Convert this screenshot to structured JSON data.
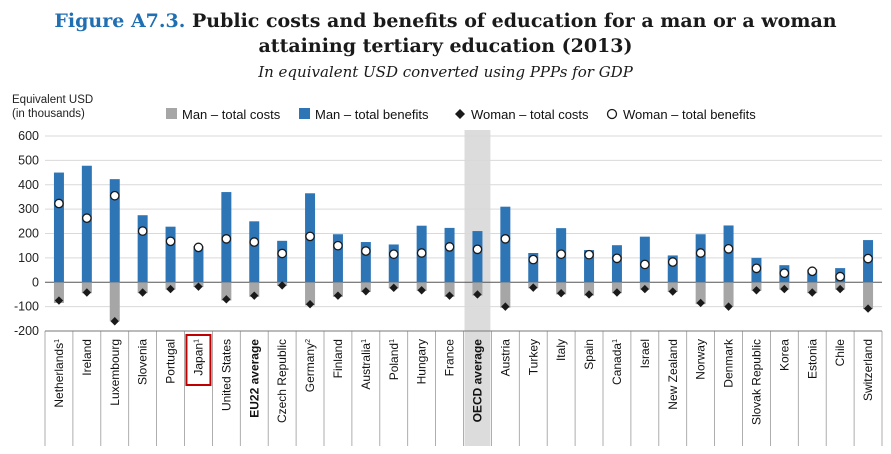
{
  "header": {
    "figure_label": "Figure A7.3.",
    "title_line1": "Public costs and benefits of education for a man or a woman",
    "title_line2": "attaining tertiary education (2013)",
    "subtitle": "In equivalent USD converted using PPPs for GDP",
    "ylabel_line1": "Equivalent USD",
    "ylabel_line2": "(in thousands)"
  },
  "colors": {
    "man_costs": "#a6a6a6",
    "man_benefits": "#2e75b6",
    "woman_costs": "#1a1a1a",
    "woman_benefits": "#ffffff",
    "highlight_band": "#dcdcdc",
    "japan_box": "#c00000",
    "grid": "#d9d9d9"
  },
  "chart_data": {
    "type": "bar",
    "title": "Public costs and benefits of education for a man or a woman attaining tertiary education (2013)",
    "subtitle": "In equivalent USD converted using PPPs for GDP",
    "ylabel": "Equivalent USD (in thousands)",
    "xlabel": "",
    "ylim": [
      -200,
      600
    ],
    "yticks": [
      -200,
      -100,
      0,
      100,
      200,
      300,
      400,
      500,
      600
    ],
    "grid": true,
    "legend": [
      "Man – total costs",
      "Man – total benefits",
      "Woman – total costs",
      "Woman – total benefits"
    ],
    "legend_position": "top",
    "categories": [
      {
        "name": "Netherlands",
        "sup": "1",
        "bold": false
      },
      {
        "name": "Ireland",
        "sup": "",
        "bold": false
      },
      {
        "name": "Luxembourg",
        "sup": "",
        "bold": false
      },
      {
        "name": "Slovenia",
        "sup": "",
        "bold": false
      },
      {
        "name": "Portugal",
        "sup": "",
        "bold": false
      },
      {
        "name": "Japan",
        "sup": "1",
        "bold": false
      },
      {
        "name": "United States",
        "sup": "",
        "bold": false
      },
      {
        "name": "EU22 average",
        "sup": "",
        "bold": true
      },
      {
        "name": "Czech Republic",
        "sup": "",
        "bold": false
      },
      {
        "name": "Germany",
        "sup": "2",
        "bold": false
      },
      {
        "name": "Finland",
        "sup": "",
        "bold": false
      },
      {
        "name": "Australia",
        "sup": "1",
        "bold": false
      },
      {
        "name": "Poland",
        "sup": "1",
        "bold": false
      },
      {
        "name": "Hungary",
        "sup": "",
        "bold": false
      },
      {
        "name": "France",
        "sup": "",
        "bold": false
      },
      {
        "name": "OECD average",
        "sup": "",
        "bold": true
      },
      {
        "name": "Austria",
        "sup": "",
        "bold": false
      },
      {
        "name": "Turkey",
        "sup": "",
        "bold": false
      },
      {
        "name": "Italy",
        "sup": "",
        "bold": false
      },
      {
        "name": "Spain",
        "sup": "",
        "bold": false
      },
      {
        "name": "Canada",
        "sup": "1",
        "bold": false
      },
      {
        "name": "Israel",
        "sup": "",
        "bold": false
      },
      {
        "name": "New Zealand",
        "sup": "",
        "bold": false
      },
      {
        "name": "Norway",
        "sup": "",
        "bold": false
      },
      {
        "name": "Denmark",
        "sup": "",
        "bold": false
      },
      {
        "name": "Slovak Republic",
        "sup": "",
        "bold": false
      },
      {
        "name": "Korea",
        "sup": "",
        "bold": false
      },
      {
        "name": "Estonia",
        "sup": "",
        "bold": false
      },
      {
        "name": "Chile",
        "sup": "",
        "bold": false
      },
      {
        "name": "Switzerland",
        "sup": "",
        "bold": false
      }
    ],
    "highlight_category": "OECD average",
    "boxed_category": "Japan",
    "series": [
      {
        "name": "Man – total costs",
        "kind": "bar",
        "values": [
          -85,
          -45,
          -160,
          -45,
          -30,
          -20,
          -75,
          -60,
          -15,
          -95,
          -60,
          -40,
          -25,
          -35,
          -60,
          -55,
          -105,
          -25,
          -50,
          -55,
          -45,
          -30,
          -40,
          -90,
          -100,
          -35,
          -30,
          -45,
          -30,
          -110
        ]
      },
      {
        "name": "Man – total benefits",
        "kind": "bar",
        "values": [
          450,
          478,
          423,
          275,
          228,
          148,
          370,
          250,
          170,
          365,
          197,
          165,
          155,
          232,
          223,
          210,
          310,
          120,
          222,
          132,
          152,
          187,
          110,
          197,
          233,
          100,
          70,
          52,
          58,
          173
        ]
      },
      {
        "name": "Woman – total costs",
        "kind": "marker",
        "values": [
          -75,
          -42,
          -160,
          -42,
          -28,
          -18,
          -70,
          -55,
          -13,
          -90,
          -55,
          -37,
          -23,
          -33,
          -55,
          -50,
          -100,
          -22,
          -45,
          -50,
          -42,
          -28,
          -38,
          -85,
          -100,
          -33,
          -28,
          -42,
          -28,
          -108
        ]
      },
      {
        "name": "Woman – total benefits",
        "kind": "marker",
        "values": [
          323,
          263,
          355,
          210,
          168,
          143,
          178,
          165,
          118,
          188,
          150,
          128,
          115,
          120,
          145,
          135,
          178,
          93,
          115,
          113,
          98,
          73,
          83,
          120,
          137,
          57,
          37,
          45,
          23,
          97
        ]
      }
    ]
  }
}
